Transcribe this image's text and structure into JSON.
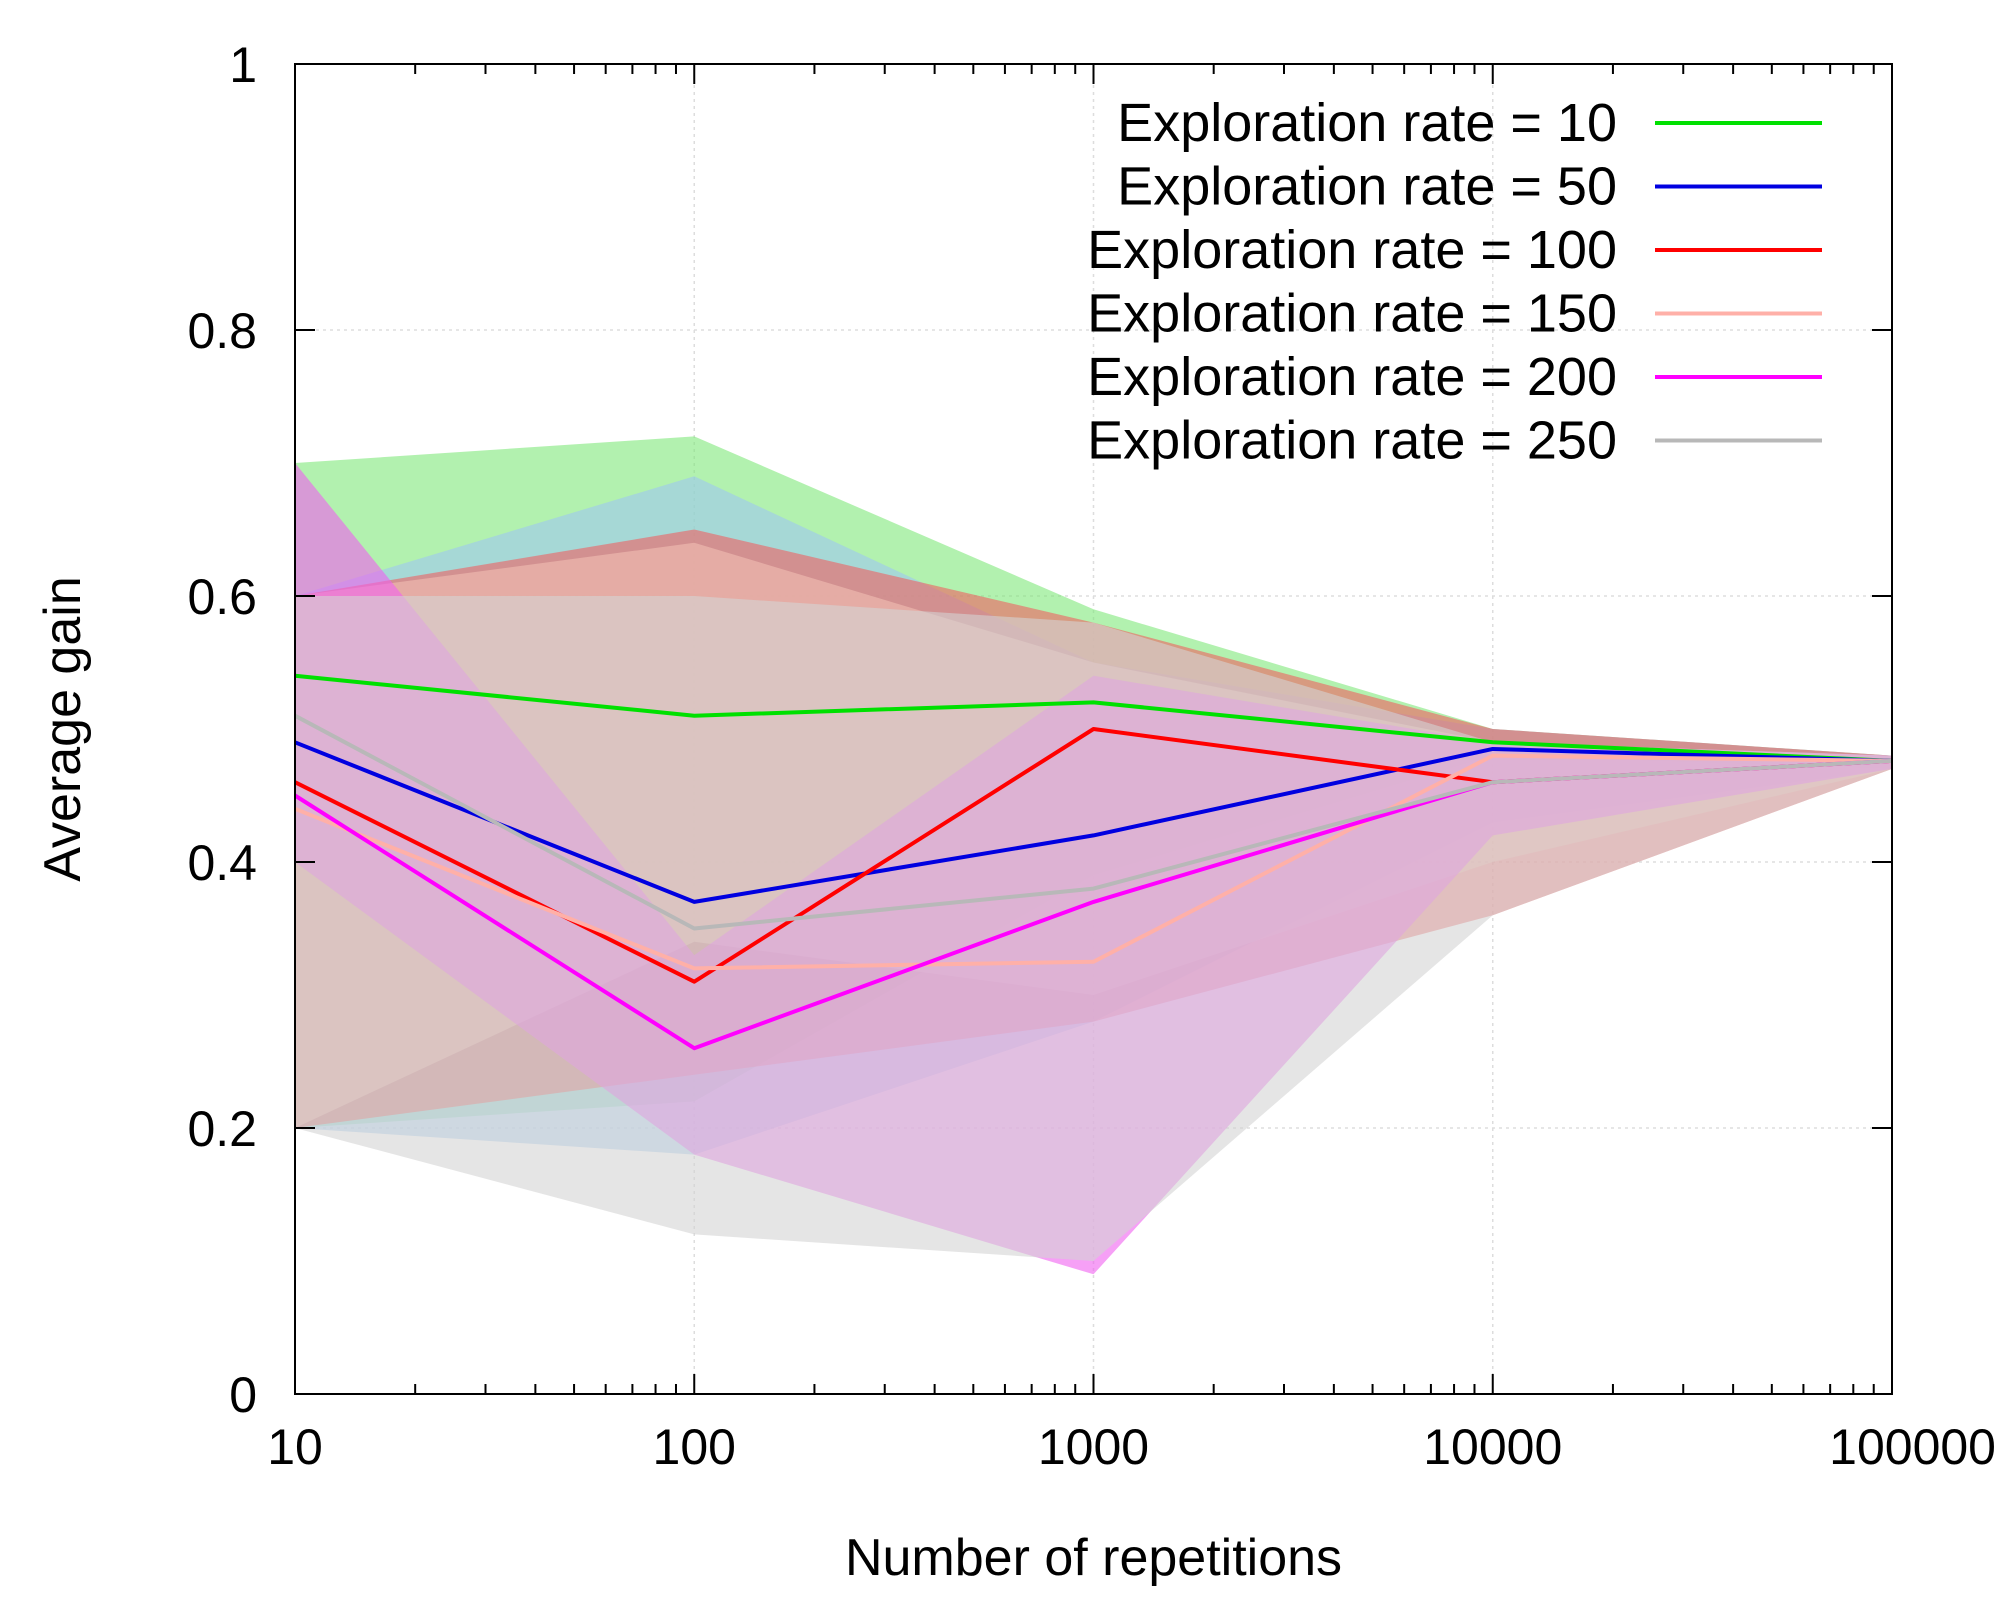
{
  "chart_data": {
    "type": "line",
    "title": "",
    "xlabel": "Number of repetitions",
    "ylabel": "Average gain",
    "x_scale": "log",
    "xlim": [
      10,
      100000
    ],
    "ylim": [
      0,
      1
    ],
    "x_ticks": [
      {
        "value": 10,
        "label": "10"
      },
      {
        "value": 100,
        "label": "100"
      },
      {
        "value": 1000,
        "label": "1000"
      },
      {
        "value": 10000,
        "label": "10000"
      },
      {
        "value": 100000,
        "label": "100000"
      }
    ],
    "y_ticks": [
      {
        "value": 0,
        "label": "0"
      },
      {
        "value": 0.2,
        "label": "0.2"
      },
      {
        "value": 0.4,
        "label": "0.4"
      },
      {
        "value": 0.6,
        "label": "0.6"
      },
      {
        "value": 0.8,
        "label": "0.8"
      },
      {
        "value": 1,
        "label": "1"
      }
    ],
    "grid": true,
    "legend_position": "top-right",
    "x": [
      10,
      100,
      1000,
      10000,
      100000
    ],
    "series": [
      {
        "name": "Exploration rate = 10",
        "color": "#00e000",
        "band_color": "#7ee87a",
        "values": [
          0.54,
          0.51,
          0.52,
          0.49,
          0.476
        ],
        "upper": [
          0.7,
          0.72,
          0.59,
          0.5,
          0.48
        ],
        "lower": [
          0.2,
          0.22,
          0.39,
          0.48,
          0.47
        ]
      },
      {
        "name": "Exploration rate = 50",
        "color": "#0000e0",
        "band_color": "#9fc8f0",
        "values": [
          0.49,
          0.37,
          0.42,
          0.485,
          0.476
        ],
        "upper": [
          0.6,
          0.69,
          0.55,
          0.5,
          0.48
        ],
        "lower": [
          0.2,
          0.18,
          0.28,
          0.43,
          0.47
        ]
      },
      {
        "name": "Exploration rate = 100",
        "color": "#ff0000",
        "band_color": "#f06060",
        "values": [
          0.46,
          0.31,
          0.5,
          0.46,
          0.476
        ],
        "upper": [
          0.6,
          0.65,
          0.58,
          0.5,
          0.48
        ],
        "lower": [
          0.2,
          0.24,
          0.28,
          0.36,
          0.47
        ]
      },
      {
        "name": "Exploration rate = 150",
        "color": "#ffb0a8",
        "band_color": "#f2c0b4",
        "values": [
          0.44,
          0.32,
          0.325,
          0.48,
          0.476
        ],
        "upper": [
          0.6,
          0.64,
          0.55,
          0.49,
          0.48
        ],
        "lower": [
          0.2,
          0.34,
          0.3,
          0.4,
          0.47
        ]
      },
      {
        "name": "Exploration rate = 200",
        "color": "#ff00ff",
        "band_color": "#f060f0",
        "values": [
          0.45,
          0.26,
          0.37,
          0.46,
          0.476
        ],
        "upper": [
          0.7,
          0.33,
          0.54,
          0.49,
          0.48
        ],
        "lower": [
          0.4,
          0.18,
          0.09,
          0.42,
          0.47
        ]
      },
      {
        "name": "Exploration rate = 250",
        "color": "#b8b8b8",
        "band_color": "#d4d4d4",
        "values": [
          0.51,
          0.35,
          0.38,
          0.46,
          0.476
        ],
        "upper": [
          0.6,
          0.6,
          0.58,
          0.49,
          0.48
        ],
        "lower": [
          0.2,
          0.12,
          0.1,
          0.36,
          0.47
        ]
      }
    ]
  }
}
